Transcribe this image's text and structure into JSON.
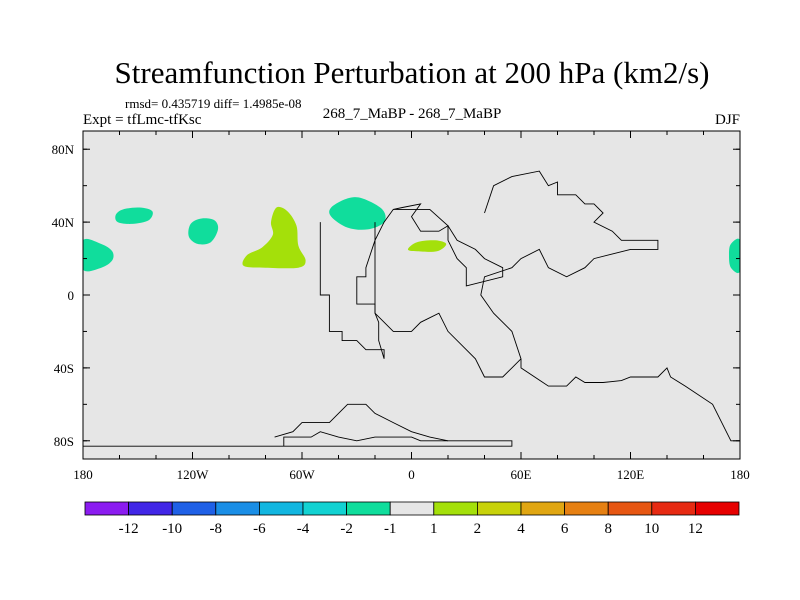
{
  "chart_data": {
    "type": "contour-map",
    "title": "Streamfunction Perturbation at 200 hPa (km2/s)",
    "stats": "rmsd= 0.435719 diff= 1.4985e-08",
    "left_label": "Expt = tfLmc-tfKsc",
    "center_label": "268_7_MaBP - 268_7_MaBP",
    "right_label": "DJF",
    "lon_ticks": [
      {
        "value": -180,
        "label": "180"
      },
      {
        "value": -120,
        "label": "120W"
      },
      {
        "value": -60,
        "label": "60W"
      },
      {
        "value": 0,
        "label": "0"
      },
      {
        "value": 60,
        "label": "60E"
      },
      {
        "value": 120,
        "label": "120E"
      },
      {
        "value": 180,
        "label": "180"
      }
    ],
    "lat_ticks": [
      {
        "value": 80,
        "label": "80N"
      },
      {
        "value": 40,
        "label": "40N"
      },
      {
        "value": 0,
        "label": "0"
      },
      {
        "value": -40,
        "label": "40S"
      },
      {
        "value": -80,
        "label": "80S"
      }
    ],
    "lon_range": [
      -180,
      180
    ],
    "lat_range": [
      -90,
      90
    ],
    "background_color": "#e6e6e6",
    "colorbar": {
      "levels": [
        "-12",
        "-10",
        "-8",
        "-6",
        "-4",
        "-2",
        "-1",
        "1",
        "2",
        "4",
        "6",
        "8",
        "10",
        "12"
      ],
      "colors": [
        "#8b1cf0",
        "#4126e6",
        "#1f60e6",
        "#1a8ee6",
        "#12b6e0",
        "#12d2d2",
        "#10dd9c",
        "#e6e6e6",
        "#a4e00a",
        "#c8d20a",
        "#e0a612",
        "#e68012",
        "#e65612",
        "#e62a12",
        "#e60000"
      ]
    },
    "regions": [
      {
        "level": "-2 to -1",
        "color": "#10dd9c",
        "center": [
          -180,
          21
        ],
        "points": [
          [
            -180,
            30
          ],
          [
            -170,
            28
          ],
          [
            -164,
            24
          ],
          [
            -164,
            19
          ],
          [
            -170,
            15
          ],
          [
            -180,
            14
          ]
        ]
      },
      {
        "level": "-2 to -1",
        "color": "#10dd9c",
        "center": [
          180,
          21
        ],
        "points": [
          [
            180,
            30
          ],
          [
            175,
            28
          ],
          [
            174,
            22
          ],
          [
            175,
            15
          ],
          [
            180,
            13
          ]
        ]
      },
      {
        "level": "-2 to -1",
        "color": "#10dd9c",
        "center": [
          -153,
          43
        ],
        "points": [
          [
            -162,
            44
          ],
          [
            -158,
            47
          ],
          [
            -149,
            48
          ],
          [
            -142,
            46
          ],
          [
            -144,
            41
          ],
          [
            -153,
            39
          ],
          [
            -161,
            40
          ]
        ]
      },
      {
        "level": "-2 to -1",
        "color": "#10dd9c",
        "center": [
          -114,
          35
        ],
        "points": [
          [
            -121,
            39
          ],
          [
            -115,
            42
          ],
          [
            -108,
            41
          ],
          [
            -106,
            36
          ],
          [
            -110,
            29
          ],
          [
            -117,
            28
          ],
          [
            -122,
            32
          ]
        ]
      },
      {
        "level": "-2 to -1",
        "color": "#10dd9c",
        "center": [
          -30,
          45
        ],
        "points": [
          [
            -44,
            48
          ],
          [
            -35,
            53
          ],
          [
            -27,
            53
          ],
          [
            -16,
            47
          ],
          [
            -15,
            40
          ],
          [
            -24,
            36
          ],
          [
            -35,
            37
          ],
          [
            -44,
            43
          ]
        ]
      },
      {
        "level": "1 to 2",
        "color": "#a4e00a",
        "center": [
          -75,
          22
        ],
        "points": [
          [
            -92,
            16
          ],
          [
            -80,
            15
          ],
          [
            -62,
            15
          ],
          [
            -58,
            19
          ],
          [
            -62,
            27
          ],
          [
            -63,
            38
          ],
          [
            -68,
            46
          ],
          [
            -74,
            48
          ],
          [
            -77,
            40
          ],
          [
            -76,
            33
          ],
          [
            -82,
            26
          ],
          [
            -90,
            22
          ]
        ]
      },
      {
        "level": "1 to 2",
        "color": "#a4e00a",
        "center": [
          8,
          27
        ],
        "points": [
          [
            -2,
            25
          ],
          [
            3,
            29
          ],
          [
            13,
            30
          ],
          [
            19,
            28
          ],
          [
            14,
            24
          ],
          [
            3,
            24
          ]
        ]
      }
    ],
    "coastlines": [
      {
        "name": "americas-outline",
        "points": [
          [
            -50,
            40
          ],
          [
            -50,
            0
          ],
          [
            -45,
            0
          ],
          [
            -45,
            -20
          ],
          [
            -38,
            -20
          ],
          [
            -38,
            -25
          ],
          [
            -30,
            -25
          ],
          [
            -25,
            -30
          ],
          [
            -15,
            -30
          ],
          [
            -15,
            -35
          ],
          [
            -18,
            -25
          ],
          [
            -18,
            -15
          ],
          [
            -20,
            -10
          ],
          [
            -20,
            -5
          ],
          [
            -30,
            -5
          ],
          [
            -30,
            10
          ],
          [
            -25,
            10
          ],
          [
            -25,
            15
          ],
          [
            -20,
            30
          ],
          [
            -15,
            40
          ],
          [
            -10,
            47
          ],
          [
            -5,
            48
          ],
          [
            5,
            50
          ],
          [
            0,
            43
          ],
          [
            5,
            35
          ],
          [
            15,
            35
          ],
          [
            20,
            38
          ],
          [
            20,
            30
          ],
          [
            25,
            20
          ],
          [
            30,
            15
          ],
          [
            30,
            5
          ],
          [
            50,
            10
          ],
          [
            50,
            15
          ],
          [
            40,
            20
          ],
          [
            35,
            25
          ],
          [
            25,
            30
          ],
          [
            20,
            38
          ],
          [
            10,
            47
          ],
          [
            -10,
            47
          ]
        ]
      },
      {
        "name": "eurasia-outline",
        "points": [
          [
            40,
            45
          ],
          [
            45,
            60
          ],
          [
            55,
            65
          ],
          [
            70,
            68
          ],
          [
            75,
            60
          ],
          [
            80,
            62
          ],
          [
            80,
            55
          ],
          [
            90,
            55
          ],
          [
            95,
            50
          ],
          [
            100,
            50
          ],
          [
            105,
            45
          ],
          [
            100,
            40
          ],
          [
            110,
            35
          ],
          [
            115,
            30
          ],
          [
            135,
            30
          ],
          [
            135,
            25
          ],
          [
            120,
            25
          ],
          [
            100,
            20
          ],
          [
            95,
            15
          ],
          [
            85,
            10
          ],
          [
            75,
            15
          ],
          [
            70,
            25
          ],
          [
            60,
            20
          ],
          [
            55,
            15
          ],
          [
            40,
            10
          ],
          [
            38,
            0
          ],
          [
            45,
            -10
          ],
          [
            55,
            -20
          ],
          [
            60,
            -35
          ],
          [
            60,
            -40
          ],
          [
            75,
            -50
          ],
          [
            85,
            -50
          ],
          [
            90,
            -45
          ],
          [
            95,
            -48
          ],
          [
            105,
            -48
          ],
          [
            115,
            -47
          ],
          [
            120,
            -45
          ],
          [
            125,
            -45
          ],
          [
            135,
            -45
          ],
          [
            140,
            -40
          ],
          [
            142,
            -45
          ],
          [
            150,
            -50
          ],
          [
            165,
            -60
          ],
          [
            175,
            -80
          ],
          [
            180,
            -80
          ]
        ]
      },
      {
        "name": "africa-outline",
        "points": [
          [
            -20,
            40
          ],
          [
            -20,
            -10
          ],
          [
            -10,
            -20
          ],
          [
            0,
            -20
          ],
          [
            5,
            -15
          ],
          [
            15,
            -10
          ],
          [
            20,
            -20
          ],
          [
            30,
            -30
          ],
          [
            35,
            -35
          ],
          [
            40,
            -45
          ],
          [
            50,
            -45
          ],
          [
            55,
            -40
          ],
          [
            60,
            -35
          ]
        ]
      },
      {
        "name": "antarctic-outline",
        "points": [
          [
            -180,
            -83
          ],
          [
            -70,
            -83
          ],
          [
            -70,
            -78
          ],
          [
            -55,
            -78
          ],
          [
            -50,
            -75
          ],
          [
            -40,
            -78
          ],
          [
            -30,
            -80
          ],
          [
            -20,
            -78
          ],
          [
            0,
            -78
          ],
          [
            5,
            -80
          ],
          [
            40,
            -80
          ],
          [
            55,
            -80
          ],
          [
            55,
            -83
          ],
          [
            -70,
            -83
          ]
        ]
      },
      {
        "name": "antarctic-ridge",
        "points": [
          [
            -75,
            -78
          ],
          [
            -65,
            -75
          ],
          [
            -60,
            -70
          ],
          [
            -45,
            -70
          ],
          [
            -40,
            -65
          ],
          [
            -35,
            -60
          ],
          [
            -25,
            -60
          ],
          [
            -20,
            -65
          ],
          [
            -10,
            -70
          ],
          [
            0,
            -75
          ],
          [
            10,
            -78
          ],
          [
            20,
            -80
          ]
        ]
      }
    ]
  }
}
